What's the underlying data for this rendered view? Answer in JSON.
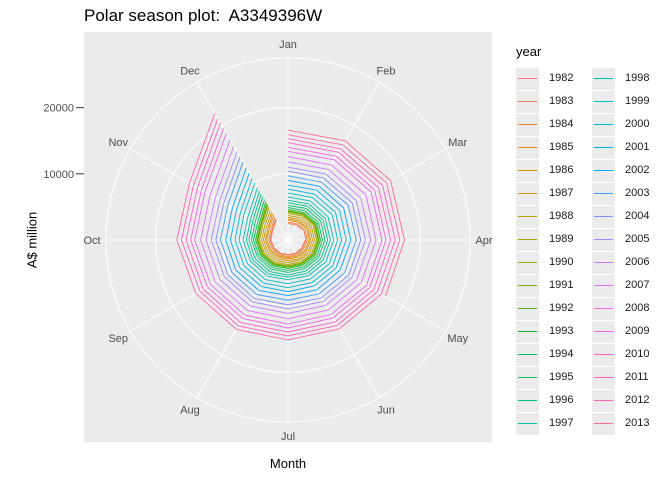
{
  "chart_data": {
    "type": "line",
    "coordinate_system": "polar",
    "title": "Polar season plot:  A3349396W",
    "xlabel": "Month",
    "ylabel": "A$ million",
    "months": [
      "Jan",
      "Feb",
      "Mar",
      "Apr",
      "May",
      "Jun",
      "Jul",
      "Aug",
      "Sep",
      "Oct",
      "Nov",
      "Dec"
    ],
    "y_ticks": [
      10000,
      20000
    ],
    "rmax": 27500,
    "grid": true,
    "legend_title": "year",
    "legend_position": "right",
    "series": [
      {
        "name": "1982",
        "color": "#F8766D",
        "values": [
          null,
          null,
          null,
          2600,
          2400,
          2300,
          2200,
          2300,
          2400,
          2600,
          2700,
          3500
        ]
      },
      {
        "name": "1983",
        "color": "#F27D53",
        "values": [
          2500,
          2600,
          2800,
          2700,
          2500,
          2400,
          2300,
          2400,
          2500,
          2700,
          2800,
          3700
        ]
      },
      {
        "name": "1984",
        "color": "#EA8331",
        "values": [
          2700,
          2800,
          3000,
          2900,
          2700,
          2600,
          2500,
          2600,
          2700,
          2900,
          3000,
          4000
        ]
      },
      {
        "name": "1985",
        "color": "#E18A00",
        "values": [
          3000,
          3100,
          3300,
          3200,
          3000,
          2800,
          2700,
          2800,
          3000,
          3200,
          3300,
          4300
        ]
      },
      {
        "name": "1986",
        "color": "#D89000",
        "values": [
          3200,
          3300,
          3500,
          3400,
          3200,
          3000,
          2900,
          3000,
          3200,
          3400,
          3500,
          4600
        ]
      },
      {
        "name": "1987",
        "color": "#CD9600",
        "values": [
          3400,
          3600,
          3800,
          3700,
          3500,
          3300,
          3100,
          3300,
          3500,
          3700,
          3800,
          4900
        ]
      },
      {
        "name": "1988",
        "color": "#BB9D00",
        "values": [
          3700,
          3900,
          4100,
          4000,
          3800,
          3500,
          3400,
          3600,
          3800,
          4000,
          4100,
          5300
        ]
      },
      {
        "name": "1989",
        "color": "#ABA300",
        "values": [
          4000,
          4200,
          4400,
          4300,
          4100,
          3800,
          3700,
          3900,
          4100,
          4300,
          4400,
          5700
        ]
      },
      {
        "name": "1990",
        "color": "#9AA800",
        "values": [
          4200,
          4400,
          4600,
          4500,
          4300,
          4000,
          3900,
          4100,
          4300,
          4500,
          4600,
          6000
        ]
      },
      {
        "name": "1991",
        "color": "#7CAE00",
        "values": [
          4300,
          4500,
          4700,
          4600,
          4400,
          4100,
          4000,
          4200,
          4400,
          4600,
          4700,
          6200
        ]
      },
      {
        "name": "1992",
        "color": "#53B400",
        "values": [
          4400,
          4600,
          4800,
          4700,
          4500,
          4200,
          4100,
          4300,
          4500,
          4700,
          4800,
          6400
        ]
      },
      {
        "name": "1993",
        "color": "#00B81F",
        "values": [
          4600,
          4800,
          5000,
          4900,
          4700,
          4400,
          4300,
          4500,
          4700,
          4900,
          5000,
          6700
        ]
      },
      {
        "name": "1994",
        "color": "#00BB4E",
        "values": [
          4900,
          5100,
          5300,
          5200,
          5000,
          4700,
          4600,
          4800,
          5000,
          5200,
          5300,
          7100
        ]
      },
      {
        "name": "1995",
        "color": "#00BE6C",
        "values": [
          5200,
          5500,
          5700,
          5600,
          5300,
          5000,
          4900,
          5100,
          5300,
          5500,
          5700,
          7600
        ]
      },
      {
        "name": "1996",
        "color": "#00C085",
        "values": [
          5600,
          5900,
          6100,
          6000,
          5700,
          5400,
          5300,
          5500,
          5700,
          5900,
          6100,
          8100
        ]
      },
      {
        "name": "1997",
        "color": "#00C19C",
        "values": [
          6000,
          6300,
          6500,
          6400,
          6100,
          5800,
          5600,
          5900,
          6100,
          6300,
          6500,
          8600
        ]
      },
      {
        "name": "1998",
        "color": "#00C0B4",
        "values": [
          6500,
          6800,
          7000,
          6900,
          6600,
          6200,
          6000,
          6300,
          6500,
          6800,
          7000,
          9200
        ]
      },
      {
        "name": "1999",
        "color": "#00BDC8",
        "values": [
          7100,
          7400,
          7700,
          7500,
          7200,
          6800,
          6600,
          6900,
          7100,
          7400,
          7700,
          10000
        ]
      },
      {
        "name": "2000",
        "color": "#00B8DB",
        "values": [
          7700,
          8000,
          8300,
          8100,
          7800,
          7400,
          7200,
          7500,
          7700,
          8000,
          8300,
          10800
        ]
      },
      {
        "name": "2001",
        "color": "#00B0EC",
        "values": [
          8300,
          8700,
          9000,
          8800,
          8400,
          8000,
          7800,
          8100,
          8400,
          8700,
          9000,
          11700
        ]
      },
      {
        "name": "2002",
        "color": "#00A5FF",
        "values": [
          9000,
          9400,
          9700,
          9500,
          9100,
          8700,
          8400,
          8800,
          9100,
          9400,
          9700,
          12600
        ]
      },
      {
        "name": "2003",
        "color": "#3B9BFF",
        "values": [
          9700,
          10100,
          10500,
          10300,
          9900,
          9400,
          9100,
          9500,
          9800,
          10200,
          10500,
          13600
        ]
      },
      {
        "name": "2004",
        "color": "#7E8DFF",
        "values": [
          10400,
          10800,
          11200,
          11000,
          10600,
          10100,
          9800,
          10200,
          10500,
          10900,
          11200,
          14500
        ]
      },
      {
        "name": "2005",
        "color": "#A58AFF",
        "values": [
          11000,
          11500,
          11900,
          11700,
          11200,
          10700,
          10400,
          10800,
          11100,
          11600,
          11900,
          15400
        ]
      },
      {
        "name": "2006",
        "color": "#C77CFF",
        "values": [
          11800,
          12300,
          12700,
          12500,
          12000,
          11400,
          11100,
          11500,
          11900,
          12400,
          12700,
          16400
        ]
      },
      {
        "name": "2007",
        "color": "#DF70F8",
        "values": [
          12600,
          13100,
          13600,
          13300,
          12800,
          12200,
          11900,
          12300,
          12700,
          13200,
          13600,
          17500
        ]
      },
      {
        "name": "2008",
        "color": "#ED68ED",
        "values": [
          13400,
          14000,
          14500,
          14200,
          13700,
          13000,
          12700,
          13100,
          13500,
          14100,
          14500,
          18600
        ]
      },
      {
        "name": "2009",
        "color": "#F564E3",
        "values": [
          14000,
          14600,
          15100,
          14800,
          14300,
          13600,
          13300,
          13700,
          14100,
          14700,
          15100,
          19500
        ]
      },
      {
        "name": "2010",
        "color": "#FF61C9",
        "values": [
          14700,
          15300,
          15800,
          15500,
          15000,
          14300,
          13900,
          14400,
          14800,
          15400,
          15800,
          20400
        ]
      },
      {
        "name": "2011",
        "color": "#FF62BC",
        "values": [
          15300,
          15900,
          16500,
          16200,
          15600,
          14900,
          14500,
          15000,
          15400,
          16100,
          16500,
          21200
        ]
      },
      {
        "name": "2012",
        "color": "#FF65AE",
        "values": [
          15900,
          16600,
          17200,
          16900,
          16300,
          15500,
          15100,
          15600,
          16100,
          16800,
          17200,
          22100
        ]
      },
      {
        "name": "2013",
        "color": "#FF6C91",
        "values": [
          16600,
          17300,
          17900,
          17600,
          17000,
          null,
          null,
          null,
          null,
          null,
          null,
          null
        ]
      }
    ]
  }
}
